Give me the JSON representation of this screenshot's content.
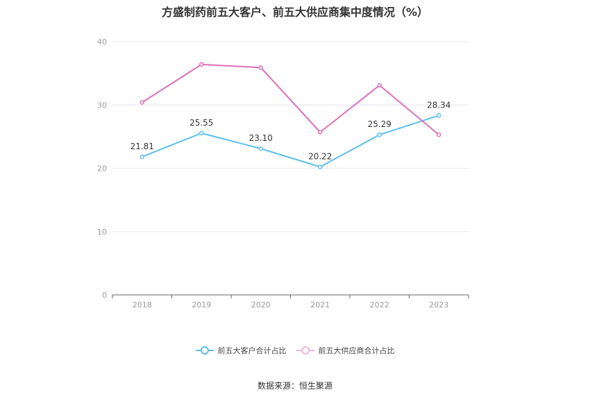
{
  "title": "方盛制药前五大客户、前五大供应商集中度情况（%）",
  "source": "数据来源：恒生聚源",
  "colors": {
    "customers": "#5bbfee",
    "suppliers": "#dd6fb8"
  },
  "chart_data": {
    "type": "line",
    "title": "方盛制药前五大客户、前五大供应商集中度情况（%）",
    "xlabel": "",
    "ylabel": "",
    "categories": [
      "2018",
      "2019",
      "2020",
      "2021",
      "2022",
      "2023"
    ],
    "ylim": [
      0,
      40
    ],
    "yticks": [
      0,
      10,
      20,
      30,
      40
    ],
    "grid": true,
    "legend_position": "bottom",
    "series": [
      {
        "name": "前五大客户合计占比",
        "values": [
          21.81,
          25.55,
          23.1,
          20.22,
          25.29,
          28.34
        ],
        "labels": [
          "21.81",
          "25.55",
          "23.10",
          "20.22",
          "25.29",
          "28.34"
        ]
      },
      {
        "name": "前五大供应商合计占比",
        "values": [
          30.4,
          36.4,
          35.9,
          25.7,
          33.1,
          25.3
        ]
      }
    ]
  }
}
